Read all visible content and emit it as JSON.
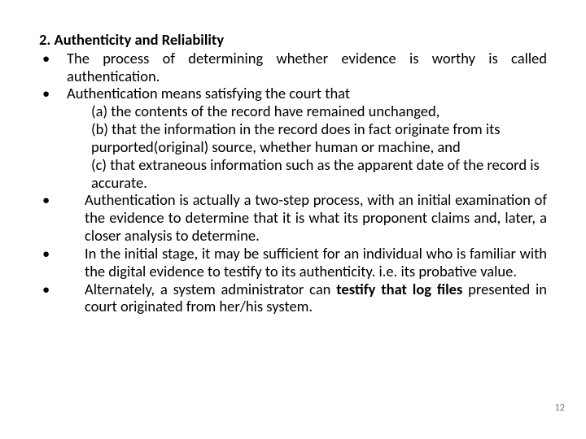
{
  "colors": {
    "background": "#ffffff",
    "text": "#000000",
    "page_number": "#808080"
  },
  "typography": {
    "font_family": "Calibri",
    "body_fontsize_pt": 18.5,
    "line_height": 1.18,
    "heading_weight": 700
  },
  "heading": "2. Authenticity and Reliability",
  "bullets": [
    {
      "mark": "•",
      "justify": true,
      "text": "The process of determining whether evidence is worthy is called authentication.",
      "subitems": []
    },
    {
      "mark": "•",
      "justify": false,
      "text": "Authentication means satisfying the court that",
      "subitems": [
        "(a) the contents of the record have remained unchanged,",
        "(b) that the information in the record does in fact originate from its purported(original) source, whether human or machine, and",
        "(c) that extraneous information such as the apparent date of the record is accurate."
      ]
    },
    {
      "mark": "•",
      "justify": true,
      "indent": true,
      "text": "  Authentication is actually a two-step process, with an initial examination of the evidence to determine that it is what its proponent claims and, later, a closer analysis to determine.",
      "subitems": []
    },
    {
      "mark": "•",
      "justify": true,
      "indent": true,
      "text": "In the initial stage, it may be sufficient for an individual who is familiar with the digital evidence to testify to its authenticity. i.e. its probative value.",
      "subitems": []
    },
    {
      "mark": "•",
      "justify": true,
      "indent": true,
      "rich": [
        {
          "t": "Alternately, a system administrator can ",
          "b": false
        },
        {
          "t": "testify that log files",
          "b": true
        },
        {
          "t": " presented in court originated from her/his system.",
          "b": false
        }
      ],
      "subitems": []
    }
  ],
  "page_number": "12"
}
